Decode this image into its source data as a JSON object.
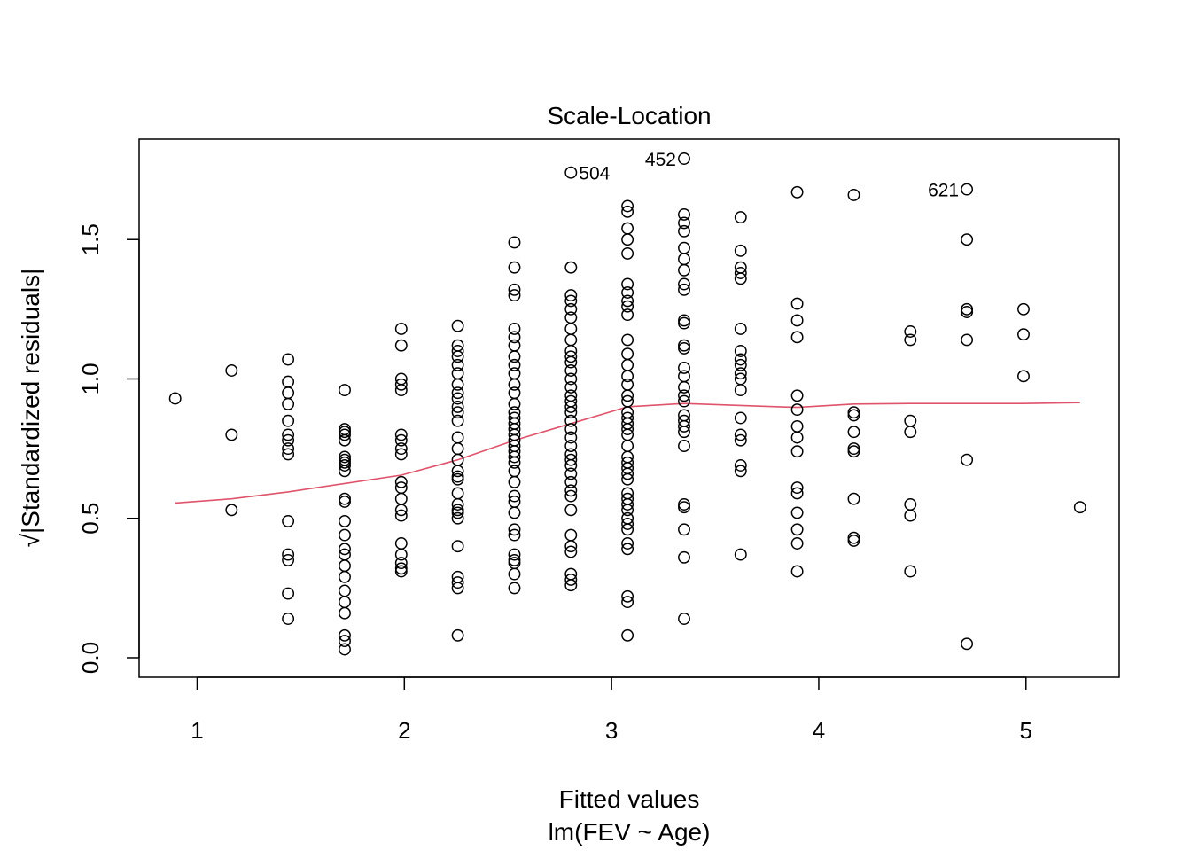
{
  "chart_data": {
    "type": "scatter",
    "title": "Scale-Location",
    "xlabel": "Fitted values",
    "xlabel_sub": "lm(FEV ~ Age)",
    "ylabel": "√|Standardized residuals|",
    "xlim": [
      0.72,
      5.45
    ],
    "ylim": [
      -0.07,
      1.86
    ],
    "x_ticks": [
      1,
      2,
      3,
      4,
      5
    ],
    "y_ticks": [
      0.0,
      0.5,
      1.0,
      1.5
    ],
    "x_tick_labels": [
      "1",
      "2",
      "3",
      "4",
      "5"
    ],
    "y_tick_labels": [
      "0.0",
      "0.5",
      "1.0",
      "1.5"
    ],
    "grid": false,
    "point_color": "#000000",
    "smooth_color": "#DF536B",
    "groups": [
      {
        "x": 0.894,
        "y": [
          0.93
        ]
      },
      {
        "x": 1.166,
        "y": [
          1.03,
          0.8,
          0.53
        ]
      },
      {
        "x": 1.439,
        "y": [
          1.07,
          0.99,
          0.95,
          0.91,
          0.85,
          0.8,
          0.78,
          0.75,
          0.73,
          0.49,
          0.37,
          0.35,
          0.23,
          0.14
        ]
      },
      {
        "x": 1.712,
        "y": [
          0.96,
          0.82,
          0.81,
          0.8,
          0.78,
          0.72,
          0.71,
          0.7,
          0.69,
          0.67,
          0.57,
          0.56,
          0.49,
          0.44,
          0.39,
          0.37,
          0.33,
          0.29,
          0.24,
          0.2,
          0.16,
          0.08,
          0.06,
          0.03
        ]
      },
      {
        "x": 1.985,
        "y": [
          1.18,
          1.12,
          1.0,
          0.98,
          0.96,
          0.8,
          0.78,
          0.75,
          0.73,
          0.63,
          0.61,
          0.57,
          0.53,
          0.51,
          0.41,
          0.37,
          0.34,
          0.32,
          0.31
        ]
      },
      {
        "x": 2.258,
        "y": [
          1.19,
          1.12,
          1.1,
          1.08,
          1.05,
          1.02,
          0.98,
          0.95,
          0.93,
          0.9,
          0.88,
          0.85,
          0.79,
          0.75,
          0.71,
          0.67,
          0.65,
          0.64,
          0.59,
          0.55,
          0.53,
          0.52,
          0.5,
          0.4,
          0.29,
          0.27,
          0.25,
          0.08
        ]
      },
      {
        "x": 2.531,
        "y": [
          1.49,
          1.4,
          1.32,
          1.3,
          1.18,
          1.15,
          1.12,
          1.08,
          1.05,
          1.02,
          0.98,
          0.95,
          0.91,
          0.88,
          0.86,
          0.84,
          0.82,
          0.8,
          0.78,
          0.76,
          0.74,
          0.72,
          0.7,
          0.67,
          0.63,
          0.58,
          0.56,
          0.52,
          0.46,
          0.44,
          0.37,
          0.35,
          0.34,
          0.3,
          0.25
        ]
      },
      {
        "x": 2.804,
        "y": [
          1.74,
          1.4,
          1.3,
          1.28,
          1.25,
          1.22,
          1.18,
          1.14,
          1.1,
          1.08,
          1.06,
          1.03,
          1.0,
          0.97,
          0.94,
          0.92,
          0.9,
          0.88,
          0.85,
          0.82,
          0.79,
          0.76,
          0.73,
          0.71,
          0.69,
          0.66,
          0.63,
          0.6,
          0.58,
          0.53,
          0.44,
          0.4,
          0.38,
          0.3,
          0.28,
          0.26
        ]
      },
      {
        "x": 3.077,
        "y": [
          1.62,
          1.6,
          1.54,
          1.5,
          1.45,
          1.34,
          1.31,
          1.28,
          1.26,
          1.23,
          1.14,
          1.09,
          1.05,
          1.01,
          0.98,
          0.94,
          0.92,
          0.88,
          0.86,
          0.84,
          0.82,
          0.8,
          0.76,
          0.72,
          0.7,
          0.68,
          0.66,
          0.64,
          0.59,
          0.57,
          0.55,
          0.53,
          0.5,
          0.48,
          0.46,
          0.41,
          0.39,
          0.22,
          0.2,
          0.08
        ]
      },
      {
        "x": 3.35,
        "y": [
          1.79,
          1.59,
          1.56,
          1.53,
          1.47,
          1.43,
          1.39,
          1.34,
          1.32,
          1.21,
          1.2,
          1.12,
          1.11,
          1.04,
          1.01,
          0.97,
          0.94,
          0.92,
          0.87,
          0.85,
          0.83,
          0.81,
          0.76,
          0.55,
          0.54,
          0.46,
          0.36,
          0.14
        ]
      },
      {
        "x": 3.623,
        "y": [
          1.58,
          1.46,
          1.4,
          1.38,
          1.36,
          1.18,
          1.1,
          1.07,
          1.05,
          1.02,
          1.0,
          0.96,
          0.86,
          0.8,
          0.78,
          0.69,
          0.67,
          0.37
        ]
      },
      {
        "x": 3.896,
        "y": [
          1.67,
          1.27,
          1.21,
          1.15,
          0.94,
          0.89,
          0.83,
          0.79,
          0.74,
          0.61,
          0.59,
          0.52,
          0.46,
          0.41,
          0.31
        ]
      },
      {
        "x": 4.169,
        "y": [
          1.66,
          0.88,
          0.87,
          0.81,
          0.75,
          0.74,
          0.57,
          0.43,
          0.42
        ]
      },
      {
        "x": 4.442,
        "y": [
          1.17,
          1.14,
          0.85,
          0.81,
          0.55,
          0.51,
          0.31
        ]
      },
      {
        "x": 4.715,
        "y": [
          1.68,
          1.5,
          1.25,
          1.24,
          1.14,
          0.71,
          0.05
        ]
      },
      {
        "x": 4.988,
        "y": [
          1.25,
          1.16,
          1.01
        ]
      },
      {
        "x": 5.261,
        "y": [
          0.54
        ]
      }
    ],
    "labeled_points": [
      {
        "label": "504",
        "x": 2.804,
        "y": 1.74,
        "side": "right"
      },
      {
        "label": "452",
        "x": 3.35,
        "y": 1.79,
        "side": "left"
      },
      {
        "label": "621",
        "x": 4.715,
        "y": 1.68,
        "side": "left"
      }
    ],
    "smooth_line": {
      "x": [
        0.894,
        1.166,
        1.439,
        1.712,
        1.985,
        2.258,
        2.531,
        2.804,
        3.077,
        3.35,
        3.623,
        3.896,
        4.169,
        4.442,
        4.715,
        4.988,
        5.261
      ],
      "y": [
        0.555,
        0.57,
        0.595,
        0.625,
        0.655,
        0.71,
        0.78,
        0.84,
        0.9,
        0.912,
        0.905,
        0.898,
        0.91,
        0.912,
        0.912,
        0.912,
        0.915
      ]
    }
  }
}
